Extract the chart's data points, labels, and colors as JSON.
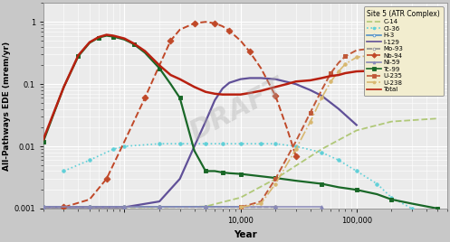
{
  "title": "Site 5 (ATR Complex)",
  "xlabel": "Year",
  "ylabel": "All-Pathways EDE (mrem/yr)",
  "xlim": [
    200,
    600000
  ],
  "ylim": [
    0.001,
    2.0
  ],
  "plot_bg": "#f0f0f0",
  "fig_bg": "#d0d0d0",
  "watermark": "DRAFT",
  "series": [
    {
      "name": "C-14",
      "color": "#b0c878",
      "linestyle": "--",
      "marker": null,
      "markersize": 0,
      "linewidth": 1.3,
      "x": [
        200,
        500,
        1000,
        2000,
        5000,
        10000,
        20000,
        50000,
        100000,
        200000,
        500000
      ],
      "y": [
        0.00105,
        0.00105,
        0.00105,
        0.00105,
        0.00108,
        0.0015,
        0.003,
        0.009,
        0.018,
        0.025,
        0.028
      ]
    },
    {
      "name": "Cl-36",
      "color": "#60d0d8",
      "linestyle": ":",
      "marker": "o",
      "markersize": 2.5,
      "linewidth": 1.2,
      "x": [
        300,
        500,
        800,
        1000,
        2000,
        3000,
        5000,
        7000,
        10000,
        15000,
        20000,
        30000,
        50000,
        70000,
        100000,
        150000,
        200000,
        300000
      ],
      "y": [
        0.004,
        0.006,
        0.009,
        0.01,
        0.011,
        0.011,
        0.011,
        0.011,
        0.011,
        0.011,
        0.011,
        0.01,
        0.008,
        0.006,
        0.004,
        0.0025,
        0.0015,
        0.001
      ]
    },
    {
      "name": "H-3",
      "color": "#5090c8",
      "linestyle": "-",
      "marker": "o",
      "markersize": 2.5,
      "linewidth": 1.3,
      "x": [
        200,
        500,
        1000,
        2000,
        5000,
        10000
      ],
      "y": [
        0.00105,
        0.00105,
        0.00105,
        0.00105,
        0.00105,
        0.00105
      ]
    },
    {
      "name": "I-129",
      "color": "#605098",
      "linestyle": "-",
      "marker": null,
      "markersize": 0,
      "linewidth": 1.6,
      "x": [
        200,
        500,
        1000,
        2000,
        3000,
        4000,
        5000,
        6000,
        7000,
        8000,
        10000,
        12000,
        15000,
        20000,
        30000,
        40000,
        50000,
        70000,
        100000
      ],
      "y": [
        0.00105,
        0.00105,
        0.00105,
        0.0013,
        0.003,
        0.01,
        0.025,
        0.055,
        0.085,
        0.105,
        0.12,
        0.125,
        0.125,
        0.12,
        0.1,
        0.08,
        0.065,
        0.04,
        0.022
      ]
    },
    {
      "name": "Mo-93",
      "color": "#909090",
      "linestyle": "--",
      "marker": "o",
      "markersize": 2.5,
      "linewidth": 1.0,
      "x": [
        200,
        500,
        1000,
        2000,
        5000,
        10000,
        20000
      ],
      "y": [
        0.00105,
        0.00105,
        0.00105,
        0.00105,
        0.00105,
        0.00105,
        0.00105
      ]
    },
    {
      "name": "Nb-94",
      "color": "#c04828",
      "linestyle": "--",
      "marker": "D",
      "markersize": 3.5,
      "linewidth": 1.4,
      "x": [
        300,
        500,
        700,
        1000,
        1500,
        2000,
        2500,
        3000,
        4000,
        5000,
        6000,
        7000,
        8000,
        10000,
        12000,
        15000,
        20000,
        25000,
        30000
      ],
      "y": [
        0.00105,
        0.0014,
        0.003,
        0.012,
        0.06,
        0.2,
        0.5,
        0.75,
        0.95,
        1.0,
        0.95,
        0.85,
        0.72,
        0.5,
        0.33,
        0.18,
        0.065,
        0.02,
        0.007
      ]
    },
    {
      "name": "Ni-59",
      "color": "#8888b8",
      "linestyle": "-",
      "marker": "^",
      "markersize": 2.5,
      "linewidth": 1.1,
      "x": [
        200,
        500,
        1000,
        2000,
        5000,
        10000,
        20000,
        50000
      ],
      "y": [
        0.00105,
        0.00105,
        0.00105,
        0.00105,
        0.00105,
        0.00105,
        0.00105,
        0.00105
      ]
    },
    {
      "name": "Tc-99",
      "color": "#1a6828",
      "linestyle": "-",
      "marker": "s",
      "markersize": 3.5,
      "linewidth": 1.6,
      "x": [
        200,
        300,
        400,
        500,
        600,
        700,
        800,
        1000,
        1200,
        1500,
        2000,
        2500,
        3000,
        4000,
        5000,
        6000,
        7000,
        8000,
        10000,
        15000,
        20000,
        30000,
        50000,
        70000,
        100000,
        150000,
        200000,
        300000,
        500000
      ],
      "y": [
        0.012,
        0.09,
        0.28,
        0.46,
        0.56,
        0.6,
        0.58,
        0.52,
        0.44,
        0.32,
        0.18,
        0.1,
        0.06,
        0.0085,
        0.004,
        0.004,
        0.0038,
        0.0037,
        0.0036,
        0.0033,
        0.0031,
        0.0028,
        0.0025,
        0.0022,
        0.002,
        0.0017,
        0.0014,
        0.0012,
        0.001
      ]
    },
    {
      "name": "U-235",
      "color": "#c05838",
      "linestyle": "--",
      "marker": "s",
      "markersize": 3.5,
      "linewidth": 1.4,
      "x": [
        10000,
        15000,
        20000,
        30000,
        40000,
        50000,
        60000,
        70000,
        80000,
        100000,
        150000,
        200000,
        300000,
        500000
      ],
      "y": [
        0.00105,
        0.0013,
        0.003,
        0.012,
        0.035,
        0.08,
        0.15,
        0.22,
        0.28,
        0.35,
        0.38,
        0.35,
        0.28,
        0.2
      ]
    },
    {
      "name": "U-238",
      "color": "#d8b870",
      "linestyle": "-.",
      "marker": "o",
      "markersize": 2.5,
      "linewidth": 1.2,
      "x": [
        10000,
        15000,
        20000,
        30000,
        40000,
        50000,
        60000,
        70000,
        80000,
        100000,
        150000,
        200000,
        300000,
        500000
      ],
      "y": [
        0.00105,
        0.0012,
        0.0025,
        0.009,
        0.025,
        0.06,
        0.11,
        0.16,
        0.21,
        0.27,
        0.3,
        0.28,
        0.22,
        0.16
      ]
    },
    {
      "name": "Total",
      "color": "#b82010",
      "linestyle": "-",
      "marker": null,
      "markersize": 0,
      "linewidth": 1.8,
      "x": [
        200,
        300,
        400,
        500,
        600,
        700,
        800,
        1000,
        1200,
        1500,
        2000,
        2500,
        3000,
        4000,
        5000,
        6000,
        7000,
        8000,
        10000,
        12000,
        15000,
        20000,
        25000,
        30000,
        40000,
        50000,
        60000,
        70000,
        80000,
        100000,
        150000,
        200000,
        300000,
        500000
      ],
      "y": [
        0.013,
        0.09,
        0.29,
        0.47,
        0.57,
        0.62,
        0.6,
        0.54,
        0.45,
        0.34,
        0.2,
        0.14,
        0.12,
        0.09,
        0.075,
        0.07,
        0.068,
        0.068,
        0.068,
        0.072,
        0.078,
        0.09,
        0.1,
        0.11,
        0.115,
        0.125,
        0.135,
        0.14,
        0.15,
        0.16,
        0.165,
        0.16,
        0.155,
        0.15
      ]
    }
  ]
}
